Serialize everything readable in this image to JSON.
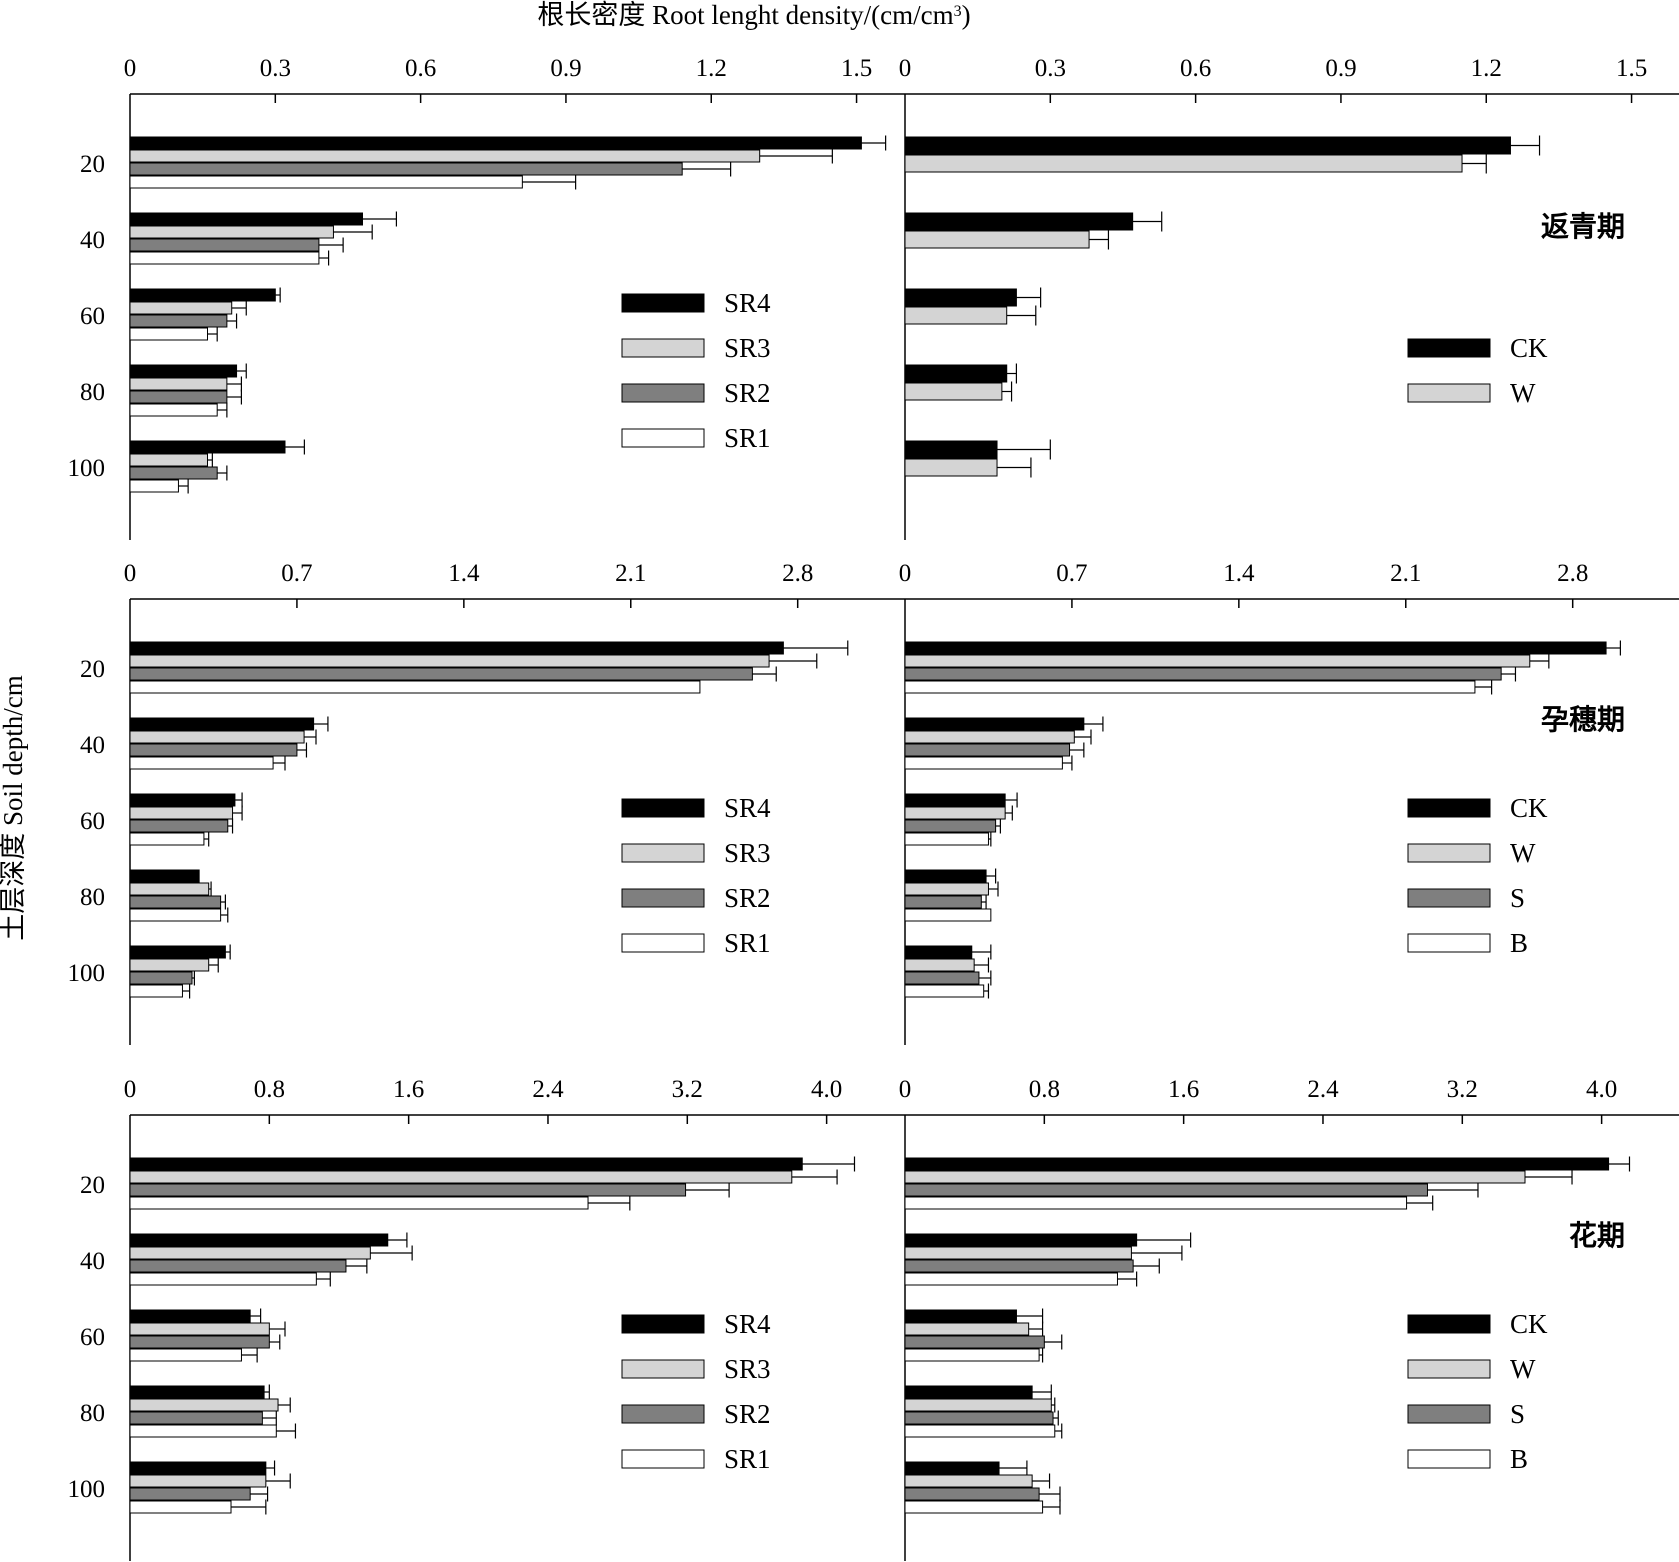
{
  "figure": {
    "x_title": "根长密度 Root lenght density/(cm/cm",
    "x_title_sup": "3",
    "x_title_close": ")",
    "y_title": "土层深度 Soil depth/cm"
  },
  "colors": {
    "SR4": "#000000",
    "SR3": "#d4d4d4",
    "SR2": "#7f7f7f",
    "SR1": "#ffffff",
    "CK": "#000000",
    "W": "#d4d4d4",
    "S": "#7f7f7f",
    "B": "#ffffff"
  },
  "chart_data": [
    {
      "type": "bar",
      "orientation": "horizontal",
      "row": 0,
      "col": 0,
      "categories": [
        "20",
        "40",
        "60",
        "80",
        "100"
      ],
      "xticks": [
        "0",
        "0.3",
        "0.6",
        "0.9",
        "1.2",
        "1.5"
      ],
      "tickStep": 0.3,
      "xlim": [
        0,
        1.6
      ],
      "stage": "",
      "legend": [
        "SR4",
        "SR3",
        "SR2",
        "SR1"
      ],
      "series": [
        {
          "name": "SR4",
          "values": [
            1.51,
            0.48,
            0.3,
            0.22,
            0.32
          ],
          "errors": [
            0.05,
            0.07,
            0.01,
            0.02,
            0.04
          ]
        },
        {
          "name": "SR3",
          "values": [
            1.3,
            0.42,
            0.21,
            0.2,
            0.16
          ],
          "errors": [
            0.15,
            0.08,
            0.03,
            0.03,
            0.01
          ]
        },
        {
          "name": "SR2",
          "values": [
            1.14,
            0.39,
            0.2,
            0.2,
            0.18
          ],
          "errors": [
            0.1,
            0.05,
            0.02,
            0.03,
            0.02
          ]
        },
        {
          "name": "SR1",
          "values": [
            0.81,
            0.39,
            0.16,
            0.18,
            0.1
          ],
          "errors": [
            0.11,
            0.02,
            0.02,
            0.02,
            0.02
          ]
        }
      ]
    },
    {
      "type": "bar",
      "orientation": "horizontal",
      "row": 0,
      "col": 1,
      "categories": [
        "20",
        "40",
        "60",
        "80",
        "100"
      ],
      "xticks": [
        "0",
        "0.3",
        "0.6",
        "0.9",
        "1.2",
        "1.5"
      ],
      "tickStep": 0.3,
      "xlim": [
        0,
        1.6
      ],
      "stage": "返青期",
      "legend": [
        "CK",
        "W"
      ],
      "series": [
        {
          "name": "CK",
          "values": [
            1.25,
            0.47,
            0.23,
            0.21,
            0.19
          ],
          "errors": [
            0.06,
            0.06,
            0.05,
            0.02,
            0.11
          ]
        },
        {
          "name": "W",
          "values": [
            1.15,
            0.38,
            0.21,
            0.2,
            0.19
          ],
          "errors": [
            0.05,
            0.04,
            0.06,
            0.02,
            0.07
          ]
        }
      ]
    },
    {
      "type": "bar",
      "orientation": "horizontal",
      "row": 1,
      "col": 0,
      "categories": [
        "20",
        "40",
        "60",
        "80",
        "100"
      ],
      "xticks": [
        "0",
        "0.7",
        "1.4",
        "2.1",
        "2.8"
      ],
      "tickStep": 0.7,
      "xlim": [
        0,
        3.25
      ],
      "stage": "",
      "legend": [
        "SR4",
        "SR3",
        "SR2",
        "SR1"
      ],
      "series": [
        {
          "name": "SR4",
          "values": [
            2.74,
            0.77,
            0.44,
            0.29,
            0.4
          ],
          "errors": [
            0.27,
            0.06,
            0.03,
            0.0,
            0.02
          ]
        },
        {
          "name": "SR3",
          "values": [
            2.68,
            0.73,
            0.43,
            0.33,
            0.33
          ],
          "errors": [
            0.2,
            0.05,
            0.04,
            0.01,
            0.04
          ]
        },
        {
          "name": "SR2",
          "values": [
            2.61,
            0.7,
            0.41,
            0.38,
            0.26
          ],
          "errors": [
            0.1,
            0.04,
            0.02,
            0.02,
            0.01
          ]
        },
        {
          "name": "SR1",
          "values": [
            2.39,
            0.6,
            0.31,
            0.38,
            0.22
          ],
          "errors": [
            0.0,
            0.05,
            0.02,
            0.03,
            0.03
          ]
        }
      ]
    },
    {
      "type": "bar",
      "orientation": "horizontal",
      "row": 1,
      "col": 1,
      "categories": [
        "20",
        "40",
        "60",
        "80",
        "100"
      ],
      "xticks": [
        "0",
        "0.7",
        "1.4",
        "2.1",
        "2.8"
      ],
      "tickStep": 0.7,
      "xlim": [
        0,
        3.25
      ],
      "stage": "孕穗期",
      "legend": [
        "CK",
        "W",
        "S",
        "B"
      ],
      "series": [
        {
          "name": "CK",
          "values": [
            2.94,
            0.75,
            0.42,
            0.34,
            0.28
          ],
          "errors": [
            0.06,
            0.08,
            0.05,
            0.04,
            0.08
          ]
        },
        {
          "name": "W",
          "values": [
            2.62,
            0.71,
            0.42,
            0.35,
            0.29
          ],
          "errors": [
            0.08,
            0.07,
            0.03,
            0.04,
            0.06
          ]
        },
        {
          "name": "S",
          "values": [
            2.5,
            0.69,
            0.38,
            0.32,
            0.31
          ],
          "errors": [
            0.06,
            0.06,
            0.02,
            0.02,
            0.05
          ]
        },
        {
          "name": "B",
          "values": [
            2.39,
            0.66,
            0.35,
            0.36,
            0.33
          ],
          "errors": [
            0.07,
            0.04,
            0.01,
            0.0,
            0.02
          ]
        }
      ]
    },
    {
      "type": "bar",
      "orientation": "horizontal",
      "row": 2,
      "col": 0,
      "categories": [
        "20",
        "40",
        "60",
        "80",
        "100"
      ],
      "xticks": [
        "0",
        "0.8",
        "1.6",
        "2.4",
        "3.2",
        "4.0"
      ],
      "tickStep": 0.8,
      "xlim": [
        0,
        4.45
      ],
      "stage": "",
      "legend": [
        "SR4",
        "SR3",
        "SR2",
        "SR1"
      ],
      "series": [
        {
          "name": "SR4",
          "values": [
            3.86,
            1.48,
            0.69,
            0.77,
            0.78
          ],
          "errors": [
            0.3,
            0.11,
            0.06,
            0.03,
            0.05
          ]
        },
        {
          "name": "SR3",
          "values": [
            3.8,
            1.38,
            0.8,
            0.85,
            0.78
          ],
          "errors": [
            0.26,
            0.24,
            0.09,
            0.07,
            0.14
          ]
        },
        {
          "name": "SR2",
          "values": [
            3.19,
            1.24,
            0.8,
            0.76,
            0.69
          ],
          "errors": [
            0.25,
            0.12,
            0.06,
            0.08,
            0.1
          ]
        },
        {
          "name": "SR1",
          "values": [
            2.63,
            1.07,
            0.64,
            0.84,
            0.58
          ],
          "errors": [
            0.24,
            0.08,
            0.09,
            0.11,
            0.2
          ]
        }
      ]
    },
    {
      "type": "bar",
      "orientation": "horizontal",
      "row": 2,
      "col": 1,
      "categories": [
        "20",
        "40",
        "60",
        "80",
        "100"
      ],
      "xticks": [
        "0",
        "0.8",
        "1.6",
        "2.4",
        "3.2",
        "4.0"
      ],
      "tickStep": 0.8,
      "xlim": [
        0,
        4.45
      ],
      "stage": "花期",
      "legend": [
        "CK",
        "W",
        "S",
        "B"
      ],
      "series": [
        {
          "name": "CK",
          "values": [
            4.04,
            1.33,
            0.64,
            0.73,
            0.54
          ],
          "errors": [
            0.12,
            0.31,
            0.15,
            0.11,
            0.16
          ]
        },
        {
          "name": "W",
          "values": [
            3.56,
            1.3,
            0.71,
            0.84,
            0.73
          ],
          "errors": [
            0.27,
            0.29,
            0.08,
            0.02,
            0.1
          ]
        },
        {
          "name": "S",
          "values": [
            3.0,
            1.31,
            0.8,
            0.85,
            0.77
          ],
          "errors": [
            0.29,
            0.15,
            0.1,
            0.03,
            0.12
          ]
        },
        {
          "name": "B",
          "values": [
            2.88,
            1.22,
            0.77,
            0.86,
            0.79
          ],
          "errors": [
            0.15,
            0.11,
            0.02,
            0.04,
            0.1
          ]
        }
      ]
    }
  ]
}
